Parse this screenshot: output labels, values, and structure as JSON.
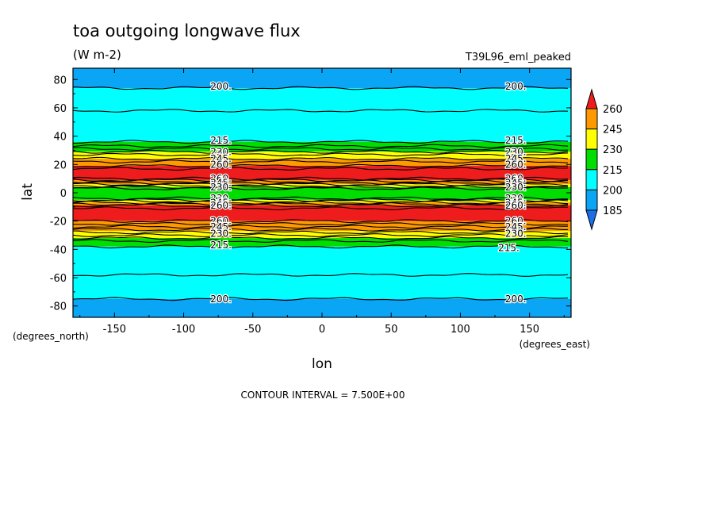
{
  "chart_data": {
    "type": "contour",
    "title": "toa outgoing longwave flux",
    "units": "(W m-2)",
    "dataset": "T39L96_eml_peaked",
    "xlabel": "lon",
    "ylabel": "lat",
    "x_units_label": "(degrees_east)",
    "y_units_label": "(degrees_north)",
    "xlim": [
      -180,
      180
    ],
    "ylim": [
      -88,
      88
    ],
    "x_ticks": [
      -150,
      -100,
      -50,
      0,
      50,
      100,
      150
    ],
    "x_tick_labels": [
      "-150",
      "-100",
      "-50",
      "0",
      "50",
      "100",
      "150"
    ],
    "y_ticks": [
      -80,
      -60,
      -40,
      -20,
      0,
      20,
      40,
      60,
      80
    ],
    "y_tick_labels": [
      "-80",
      "-60",
      "-40",
      "-20",
      "0",
      "20",
      "40",
      "60",
      "80"
    ],
    "contour_interval_text": "CONTOUR INTERVAL = 7.500E+00",
    "colorbar": {
      "labels": [
        "260",
        "245",
        "230",
        "215",
        "200",
        "185"
      ],
      "segments": [
        {
          "from": 260,
          "to": 275,
          "color": "#ee1c1c"
        },
        {
          "from": 245,
          "to": 260,
          "color": "#ff9900"
        },
        {
          "from": 230,
          "to": 245,
          "color": "#ffff00"
        },
        {
          "from": 215,
          "to": 230,
          "color": "#00dd00"
        },
        {
          "from": 200,
          "to": 215,
          "color": "#00ffff"
        },
        {
          "from": 185,
          "to": 200,
          "color": "#0aa5f5"
        },
        {
          "from": 170,
          "to": 185,
          "color": "#1a6ee8"
        }
      ]
    },
    "zonal_bands": [
      {
        "lat_from": 74,
        "lat_to": 88,
        "value_range": [
          185,
          200
        ],
        "color": "#0aa5f5"
      },
      {
        "lat_from": 36,
        "lat_to": 74,
        "value_range": [
          200,
          215
        ],
        "color": "#00ffff"
      },
      {
        "lat_from": 29,
        "lat_to": 36,
        "value_range": [
          215,
          230
        ],
        "color": "#00dd00"
      },
      {
        "lat_from": 24,
        "lat_to": 29,
        "value_range": [
          230,
          245
        ],
        "color": "#ffff00"
      },
      {
        "lat_from": 19,
        "lat_to": 24,
        "value_range": [
          245,
          260
        ],
        "color": "#ff9900"
      },
      {
        "lat_from": 9,
        "lat_to": 19,
        "value_range": [
          260,
          275
        ],
        "color": "#ee1c1c"
      },
      {
        "lat_from": 6,
        "lat_to": 9,
        "value_range": [
          245,
          260
        ],
        "color": "#ff9900"
      },
      {
        "lat_from": 4,
        "lat_to": 6,
        "value_range": [
          230,
          245
        ],
        "color": "#ffff00"
      },
      {
        "lat_from": -5,
        "lat_to": 4,
        "value_range": [
          215,
          230
        ],
        "color": "#00dd00"
      },
      {
        "lat_from": -7,
        "lat_to": -5,
        "value_range": [
          230,
          245
        ],
        "color": "#ffff00"
      },
      {
        "lat_from": -9,
        "lat_to": -7,
        "value_range": [
          245,
          260
        ],
        "color": "#ff9900"
      },
      {
        "lat_from": -20,
        "lat_to": -9,
        "value_range": [
          260,
          275
        ],
        "color": "#ee1c1c"
      },
      {
        "lat_from": -27,
        "lat_to": -20,
        "value_range": [
          245,
          260
        ],
        "color": "#ff9900"
      },
      {
        "lat_from": -32,
        "lat_to": -27,
        "value_range": [
          230,
          245
        ],
        "color": "#ffff00"
      },
      {
        "lat_from": -38,
        "lat_to": -32,
        "value_range": [
          215,
          230
        ],
        "color": "#00dd00"
      },
      {
        "lat_from": -75,
        "lat_to": -38,
        "value_range": [
          200,
          215
        ],
        "color": "#00ffff"
      },
      {
        "lat_from": -88,
        "lat_to": -75,
        "value_range": [
          185,
          200
        ],
        "color": "#0aa5f5"
      }
    ],
    "contour_lines_lat": [
      74,
      58,
      36,
      33,
      31,
      29,
      27,
      24,
      22,
      19,
      17,
      10,
      9,
      8,
      7,
      6,
      5,
      4,
      3,
      -4,
      -5,
      -6,
      -7,
      -8,
      -9,
      -11,
      -20,
      -22,
      -24,
      -26,
      -28,
      -30,
      -32,
      -34,
      -38,
      -58,
      -75
    ],
    "contour_labels": [
      {
        "text": "200.",
        "lon": -73,
        "lat": 75
      },
      {
        "text": "200.",
        "lon": 140,
        "lat": 75
      },
      {
        "text": "215.",
        "lon": -73,
        "lat": 37
      },
      {
        "text": "215.",
        "lon": 140,
        "lat": 37
      },
      {
        "text": "230.",
        "lon": -73,
        "lat": 29
      },
      {
        "text": "230.",
        "lon": 140,
        "lat": 29
      },
      {
        "text": "245.",
        "lon": -73,
        "lat": 24
      },
      {
        "text": "245.",
        "lon": 140,
        "lat": 24
      },
      {
        "text": "260.",
        "lon": -73,
        "lat": 20
      },
      {
        "text": "260.",
        "lon": 140,
        "lat": 20
      },
      {
        "text": "260.",
        "lon": -73,
        "lat": 10
      },
      {
        "text": "260.",
        "lon": 140,
        "lat": 10
      },
      {
        "text": "245.",
        "lon": -73,
        "lat": 7
      },
      {
        "text": "245.",
        "lon": 140,
        "lat": 7
      },
      {
        "text": "230.",
        "lon": -73,
        "lat": 4
      },
      {
        "text": "230.",
        "lon": 140,
        "lat": 4
      },
      {
        "text": "230.",
        "lon": -73,
        "lat": -4
      },
      {
        "text": "230.",
        "lon": 140,
        "lat": -4
      },
      {
        "text": "245.",
        "lon": -73,
        "lat": -7
      },
      {
        "text": "245.",
        "lon": 140,
        "lat": -7
      },
      {
        "text": "260.",
        "lon": -73,
        "lat": -9
      },
      {
        "text": "260.",
        "lon": 140,
        "lat": -9
      },
      {
        "text": "260.",
        "lon": -73,
        "lat": -20
      },
      {
        "text": "260.",
        "lon": 140,
        "lat": -20
      },
      {
        "text": "245.",
        "lon": -73,
        "lat": -24
      },
      {
        "text": "245.",
        "lon": 140,
        "lat": -24
      },
      {
        "text": "230.",
        "lon": -73,
        "lat": -29
      },
      {
        "text": "230.",
        "lon": 140,
        "lat": -29
      },
      {
        "text": "215.",
        "lon": -73,
        "lat": -37
      },
      {
        "text": "215.",
        "lon": 135,
        "lat": -39
      },
      {
        "text": "200.",
        "lon": -73,
        "lat": -75
      },
      {
        "text": "200.",
        "lon": 140,
        "lat": -75
      }
    ]
  }
}
